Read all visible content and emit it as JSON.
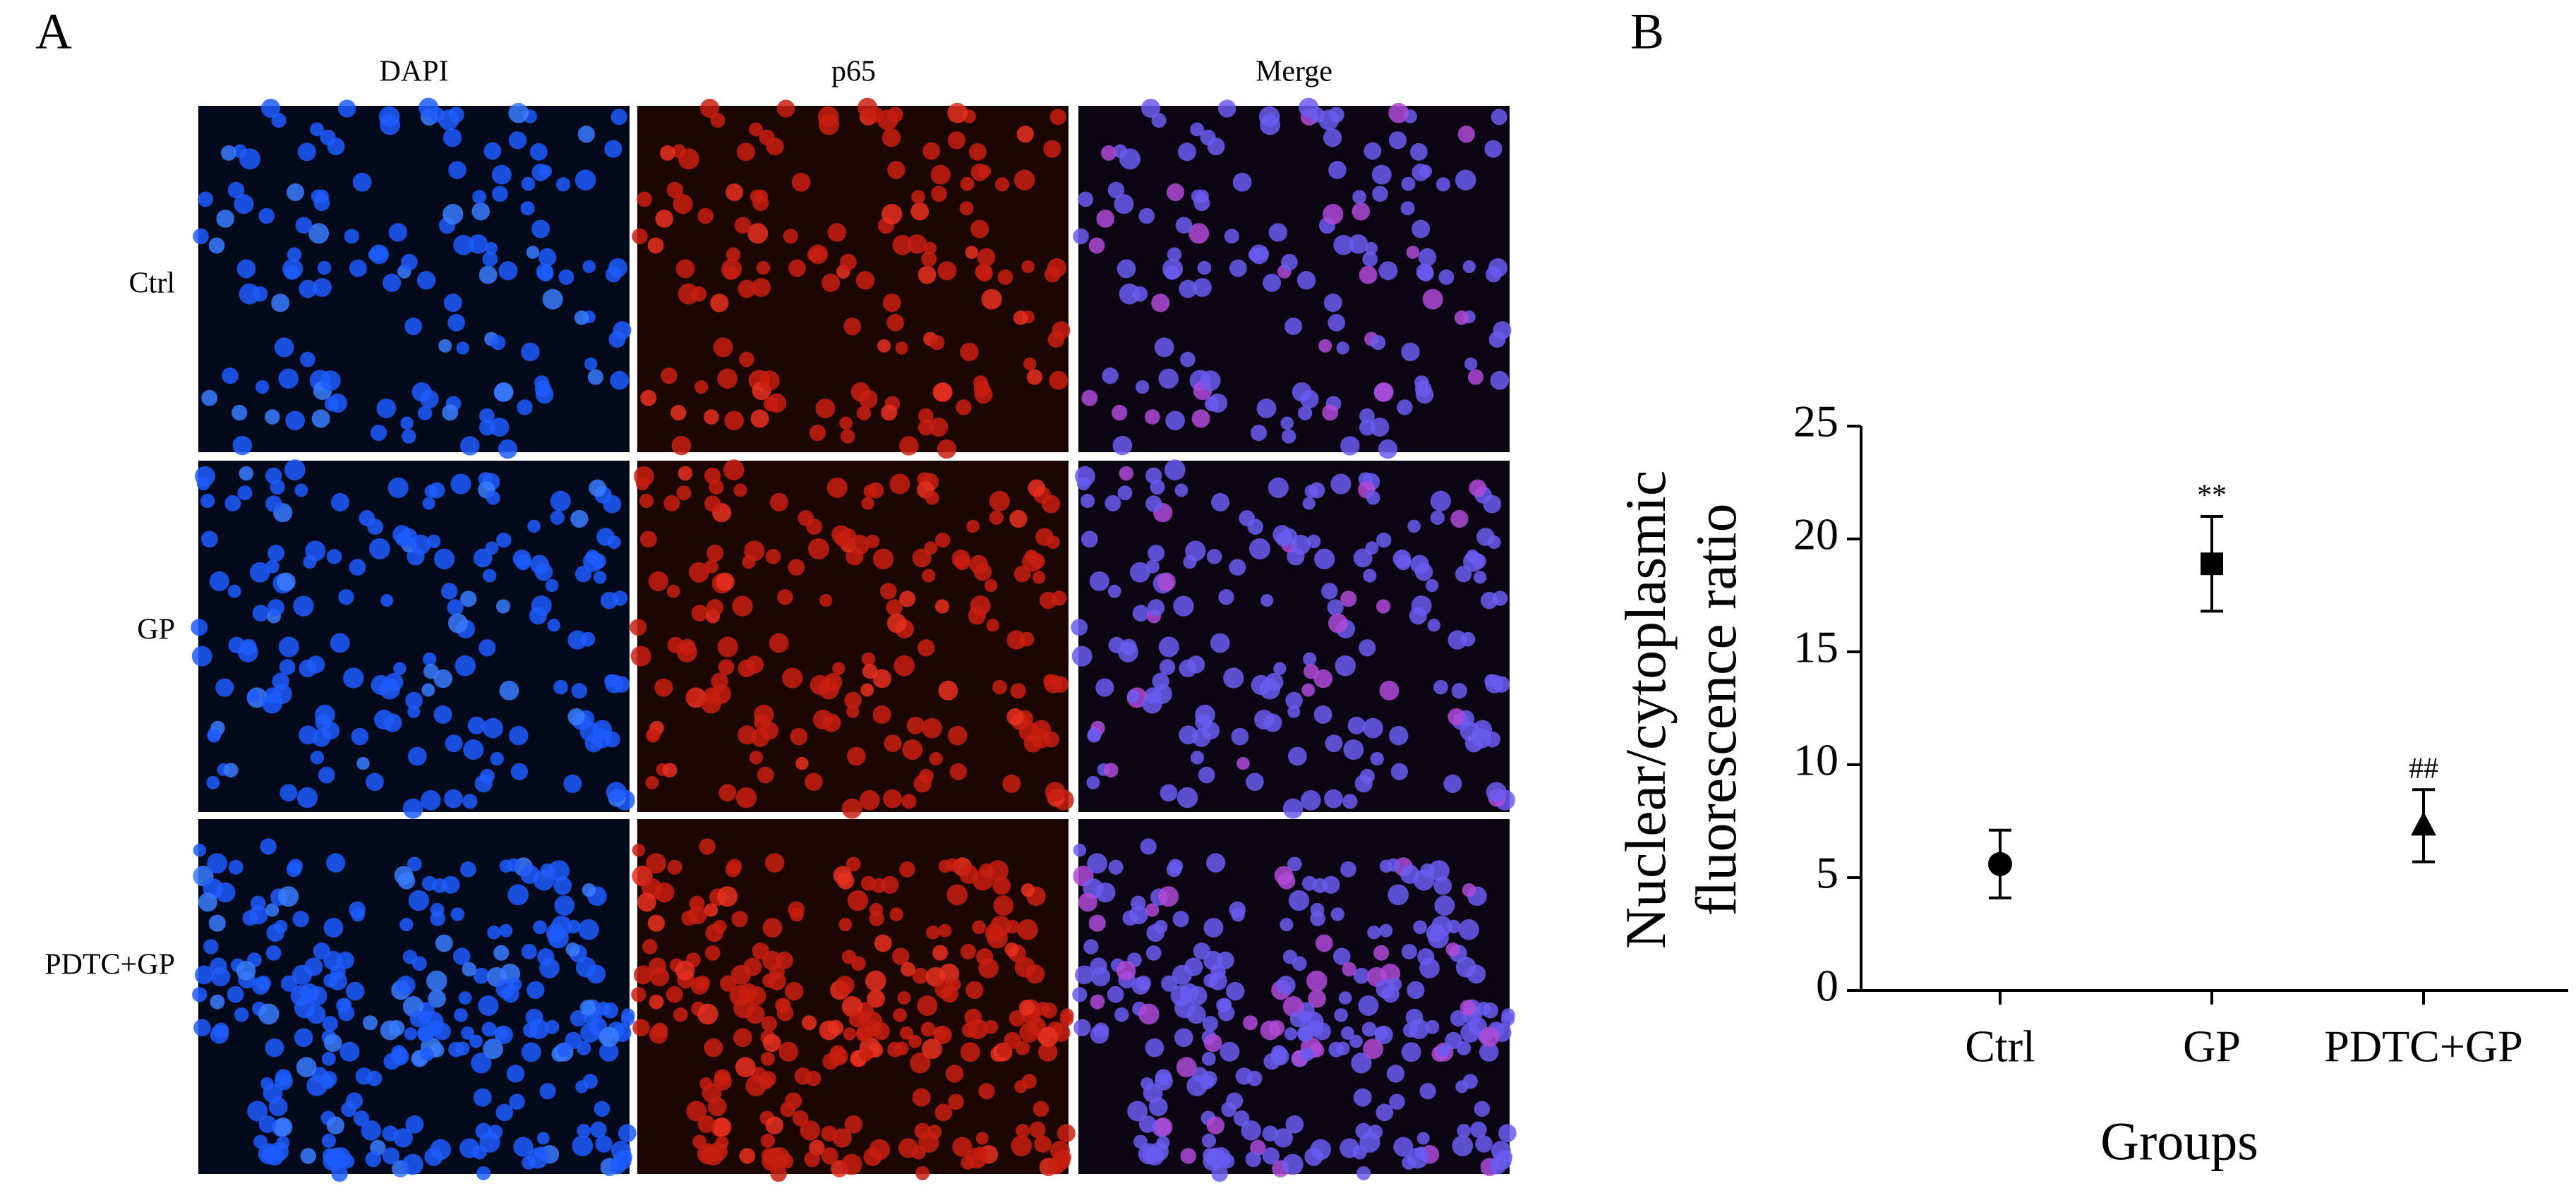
{
  "panel_a": {
    "label": "A",
    "columns": [
      "DAPI",
      "p65",
      "Merge"
    ],
    "rows": [
      "Ctrl",
      "GP",
      "PDTC+GP"
    ]
  },
  "chart_data": {
    "type": "errorscatter",
    "panel_label": "B",
    "categories": [
      "Ctrl",
      "GP",
      "PDTC+GP"
    ],
    "values": [
      5.6,
      18.9,
      7.3
    ],
    "errors": [
      1.5,
      2.1,
      1.6
    ],
    "markers": [
      "circle",
      "square",
      "triangle"
    ],
    "color": "#000000",
    "annotations": [
      null,
      "**",
      "##"
    ],
    "xlabel": "Groups",
    "ylabel": [
      "Nuclear/cytoplasmic",
      "fluorescence ratio"
    ],
    "ylim": [
      0,
      25
    ],
    "yticks": [
      0,
      5,
      10,
      15,
      20,
      25
    ]
  }
}
